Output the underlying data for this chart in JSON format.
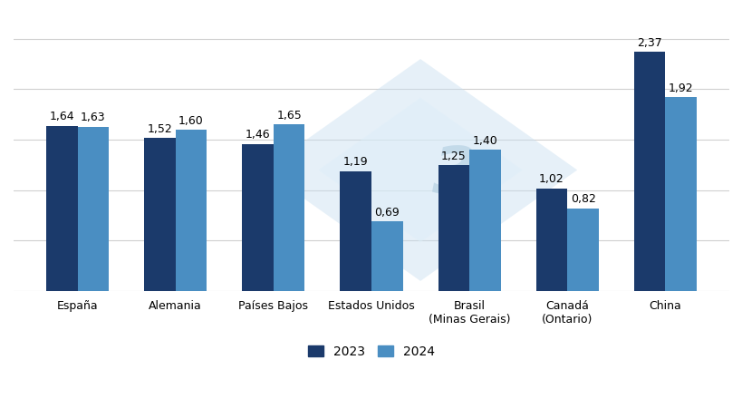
{
  "categories": [
    "España",
    "Alemania",
    "Países Bajos",
    "Estados Unidos",
    "Brasil\n(Minas Gerais)",
    "Canadá\n(Ontario)",
    "China"
  ],
  "values_2023": [
    1.64,
    1.52,
    1.46,
    1.19,
    1.25,
    1.02,
    2.37
  ],
  "values_2024": [
    1.63,
    1.6,
    1.65,
    0.69,
    1.4,
    0.82,
    1.92
  ],
  "labels_2023": [
    "1,64",
    "1,52",
    "1,46",
    "1,19",
    "1,25",
    "1,02",
    "2,37"
  ],
  "labels_2024": [
    "1,63",
    "1,60",
    "1,65",
    "0,69",
    "1,40",
    "0,82",
    "1,92"
  ],
  "color_2023": "#1b3a6b",
  "color_2024": "#4a8ec2",
  "ylim": [
    0,
    2.75
  ],
  "yticks": [
    0.0,
    0.5,
    1.0,
    1.5,
    2.0,
    2.5
  ],
  "legend_2023": "2023",
  "legend_2024": "2024",
  "bar_width": 0.32,
  "background_color": "#ffffff",
  "grid_color": "#d0d0d0",
  "label_fontsize": 9,
  "tick_fontsize": 9,
  "legend_fontsize": 10
}
